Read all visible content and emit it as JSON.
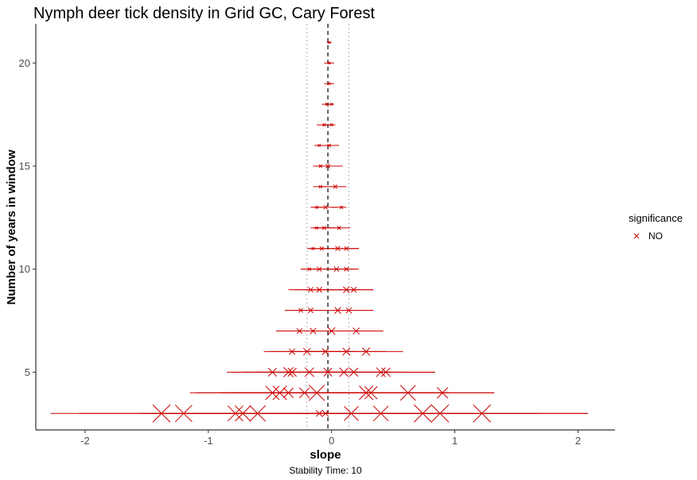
{
  "chart_data": {
    "type": "scatter",
    "title": "Nymph deer tick density in Grid GC, Cary Forest",
    "xlabel": "slope",
    "ylabel": "Number of years in window",
    "caption": "Stability Time: 10",
    "xlim": [
      -2.4,
      2.3
    ],
    "ylim": [
      2.2,
      21.9
    ],
    "x_ticks": [
      -2,
      -1,
      0,
      1,
      2
    ],
    "x_tick_labels": [
      "-2",
      "-1",
      "0",
      "1",
      "2"
    ],
    "y_ticks": [
      5,
      10,
      15,
      20
    ],
    "y_tick_labels": [
      "5",
      "10",
      "15",
      "20"
    ],
    "reference_lines": {
      "overall_slope": -0.03,
      "stability_band": [
        -0.2,
        0.14
      ]
    },
    "grid": false,
    "legend": {
      "title": "significance",
      "position": "right",
      "entries": [
        {
          "label": "NO",
          "color": "#cc0000",
          "marker": "x"
        }
      ]
    },
    "series": [
      {
        "name": "NO",
        "color": "#cc0000",
        "windows": [
          {
            "years": 3,
            "points": [
              {
                "x": -1.38,
                "ci": [
                  -2.28,
                  -0.48
                ]
              },
              {
                "x": -1.2,
                "ci": [
                  -2.05,
                  -0.35
                ]
              },
              {
                "x": -0.78,
                "ci": [
                  -1.55,
                  -0.01
                ]
              },
              {
                "x": -0.72,
                "ci": [
                  -1.5,
                  0.06
                ]
              },
              {
                "x": -0.6,
                "ci": [
                  -1.4,
                  0.2
                ]
              },
              {
                "x": -0.1,
                "ci": [
                  -0.35,
                  0.15
                ]
              },
              {
                "x": -0.05,
                "ci": [
                  -0.3,
                  0.2
                ]
              },
              {
                "x": 0.16,
                "ci": [
                  -0.55,
                  0.87
                ]
              },
              {
                "x": 0.4,
                "ci": [
                  -0.35,
                  1.15
                ]
              },
              {
                "x": 0.74,
                "ci": [
                  -0.2,
                  1.68
                ]
              },
              {
                "x": 0.88,
                "ci": [
                  -0.3,
                  2.08
                ]
              },
              {
                "x": 1.22,
                "ci": [
                  0.3,
                  2.08
                ]
              }
            ]
          },
          {
            "years": 4,
            "points": [
              {
                "x": -0.48,
                "ci": [
                  -1.15,
                  0.19
                ]
              },
              {
                "x": -0.42,
                "ci": [
                  -1.1,
                  0.26
                ]
              },
              {
                "x": -0.35,
                "ci": [
                  -0.8,
                  0.1
                ]
              },
              {
                "x": -0.22,
                "ci": [
                  -0.7,
                  0.26
                ]
              },
              {
                "x": -0.12,
                "ci": [
                  -0.9,
                  0.66
                ]
              },
              {
                "x": 0.28,
                "ci": [
                  -0.4,
                  0.96
                ]
              },
              {
                "x": 0.32,
                "ci": [
                  -0.3,
                  0.94
                ]
              },
              {
                "x": 0.62,
                "ci": [
                  -0.2,
                  1.32
                ]
              },
              {
                "x": 0.9,
                "ci": [
                  0.3,
                  1.32
                ]
              }
            ]
          },
          {
            "years": 5,
            "points": [
              {
                "x": -0.48,
                "ci": [
                  -0.85,
                  -0.11
                ]
              },
              {
                "x": -0.35,
                "ci": [
                  -0.8,
                  0.1
                ]
              },
              {
                "x": -0.32,
                "ci": [
                  -0.7,
                  0.06
                ]
              },
              {
                "x": -0.18,
                "ci": [
                  -0.6,
                  0.24
                ]
              },
              {
                "x": -0.03,
                "ci": [
                  -0.4,
                  0.34
                ]
              },
              {
                "x": 0.1,
                "ci": [
                  -0.3,
                  0.5
                ]
              },
              {
                "x": 0.18,
                "ci": [
                  -0.2,
                  0.56
                ]
              },
              {
                "x": 0.4,
                "ci": [
                  0.0,
                  0.84
                ]
              },
              {
                "x": 0.44,
                "ci": [
                  0.05,
                  0.84
                ]
              }
            ]
          },
          {
            "years": 6,
            "points": [
              {
                "x": -0.32,
                "ci": [
                  -0.55,
                  -0.09
                ]
              },
              {
                "x": -0.2,
                "ci": [
                  -0.5,
                  0.1
                ]
              },
              {
                "x": -0.05,
                "ci": [
                  -0.3,
                  0.2
                ]
              },
              {
                "x": 0.12,
                "ci": [
                  -0.2,
                  0.44
                ]
              },
              {
                "x": 0.28,
                "ci": [
                  -0.1,
                  0.58
                ]
              }
            ]
          },
          {
            "years": 7,
            "points": [
              {
                "x": -0.26,
                "ci": [
                  -0.45,
                  -0.07
                ]
              },
              {
                "x": -0.15,
                "ci": [
                  -0.38,
                  0.08
                ]
              },
              {
                "x": 0.0,
                "ci": [
                  -0.3,
                  0.3
                ]
              },
              {
                "x": 0.2,
                "ci": [
                  -0.1,
                  0.42
                ]
              }
            ]
          },
          {
            "years": 8,
            "points": [
              {
                "x": -0.25,
                "ci": [
                  -0.38,
                  -0.12
                ]
              },
              {
                "x": -0.17,
                "ci": [
                  -0.35,
                  0.01
                ]
              },
              {
                "x": 0.05,
                "ci": [
                  -0.2,
                  0.3
                ]
              },
              {
                "x": 0.14,
                "ci": [
                  -0.1,
                  0.34
                ]
              }
            ]
          },
          {
            "years": 9,
            "points": [
              {
                "x": -0.17,
                "ci": [
                  -0.35,
                  0.01
                ]
              },
              {
                "x": -0.1,
                "ci": [
                  -0.3,
                  0.1
                ]
              },
              {
                "x": 0.12,
                "ci": [
                  -0.15,
                  0.34
                ]
              },
              {
                "x": 0.18,
                "ci": [
                  -0.05,
                  0.34
                ]
              }
            ]
          },
          {
            "years": 10,
            "points": [
              {
                "x": -0.18,
                "ci": [
                  -0.25,
                  -0.11
                ]
              },
              {
                "x": -0.1,
                "ci": [
                  -0.25,
                  0.05
                ]
              },
              {
                "x": 0.04,
                "ci": [
                  -0.15,
                  0.2
                ]
              },
              {
                "x": 0.12,
                "ci": [
                  -0.05,
                  0.22
                ]
              }
            ]
          },
          {
            "years": 11,
            "points": [
              {
                "x": -0.15,
                "ci": [
                  -0.2,
                  -0.1
                ]
              },
              {
                "x": -0.08,
                "ci": [
                  -0.18,
                  0.02
                ]
              },
              {
                "x": 0.05,
                "ci": [
                  -0.1,
                  0.22
                ]
              },
              {
                "x": 0.12,
                "ci": [
                  0.0,
                  0.22
                ]
              }
            ]
          },
          {
            "years": 12,
            "points": [
              {
                "x": -0.12,
                "ci": [
                  -0.17,
                  -0.07
                ]
              },
              {
                "x": -0.06,
                "ci": [
                  -0.15,
                  0.03
                ]
              },
              {
                "x": 0.06,
                "ci": [
                  -0.05,
                  0.15
                ]
              }
            ]
          },
          {
            "years": 13,
            "points": [
              {
                "x": -0.12,
                "ci": [
                  -0.17,
                  -0.07
                ]
              },
              {
                "x": -0.05,
                "ci": [
                  -0.15,
                  0.05
                ]
              },
              {
                "x": 0.08,
                "ci": [
                  0.0,
                  0.12
                ]
              }
            ]
          },
          {
            "years": 14,
            "points": [
              {
                "x": -0.09,
                "ci": [
                  -0.15,
                  -0.03
                ]
              },
              {
                "x": 0.03,
                "ci": [
                  -0.1,
                  0.12
                ]
              }
            ]
          },
          {
            "years": 15,
            "points": [
              {
                "x": -0.09,
                "ci": [
                  -0.15,
                  -0.03
                ]
              },
              {
                "x": -0.03,
                "ci": [
                  -0.15,
                  0.09
                ]
              }
            ]
          },
          {
            "years": 16,
            "points": [
              {
                "x": -0.1,
                "ci": [
                  -0.14,
                  -0.06
                ]
              },
              {
                "x": -0.02,
                "ci": [
                  -0.1,
                  0.06
                ]
              }
            ]
          },
          {
            "years": 17,
            "points": [
              {
                "x": -0.06,
                "ci": [
                  -0.12,
                  0.0
                ]
              },
              {
                "x": 0.0,
                "ci": [
                  -0.06,
                  0.03
                ]
              }
            ]
          },
          {
            "years": 18,
            "points": [
              {
                "x": -0.04,
                "ci": [
                  -0.08,
                  0.0
                ]
              },
              {
                "x": 0.0,
                "ci": [
                  -0.04,
                  0.02
                ]
              }
            ]
          },
          {
            "years": 19,
            "points": [
              {
                "x": -0.02,
                "ci": [
                  -0.06,
                  0.02
                ]
              }
            ]
          },
          {
            "years": 20,
            "points": [
              {
                "x": -0.02,
                "ci": [
                  -0.06,
                  0.02
                ]
              }
            ]
          },
          {
            "years": 21,
            "points": [
              {
                "x": -0.02,
                "ci": [
                  -0.04,
                  0.0
                ]
              }
            ]
          }
        ]
      }
    ]
  }
}
